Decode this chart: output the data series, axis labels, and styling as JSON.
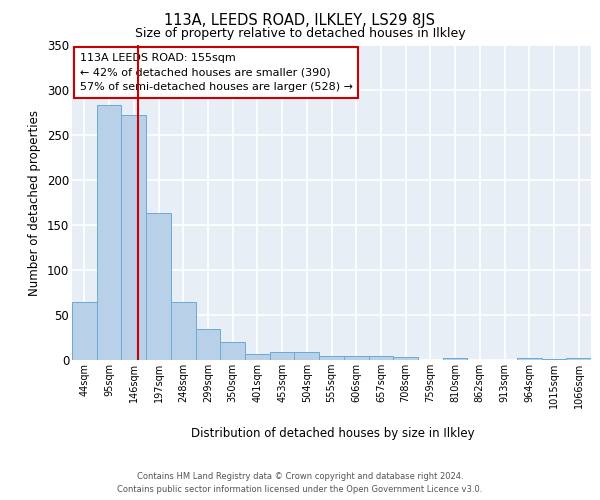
{
  "title_line1": "113A, LEEDS ROAD, ILKLEY, LS29 8JS",
  "title_line2": "Size of property relative to detached houses in Ilkley",
  "xlabel": "Distribution of detached houses by size in Ilkley",
  "ylabel": "Number of detached properties",
  "footer_line1": "Contains HM Land Registry data © Crown copyright and database right 2024.",
  "footer_line2": "Contains public sector information licensed under the Open Government Licence v3.0.",
  "bins": [
    "44sqm",
    "95sqm",
    "146sqm",
    "197sqm",
    "248sqm",
    "299sqm",
    "350sqm",
    "401sqm",
    "453sqm",
    "504sqm",
    "555sqm",
    "606sqm",
    "657sqm",
    "708sqm",
    "759sqm",
    "810sqm",
    "862sqm",
    "913sqm",
    "964sqm",
    "1015sqm",
    "1066sqm"
  ],
  "bar_values": [
    65,
    283,
    272,
    163,
    65,
    35,
    20,
    7,
    9,
    9,
    5,
    4,
    4,
    3,
    0,
    2,
    0,
    0,
    2,
    1,
    2
  ],
  "bar_color": "#b8d0e8",
  "bar_edge_color": "#6aaad4",
  "bg_color": "#e8eef6",
  "grid_color": "#ffffff",
  "annotation_line1": "113A LEEDS ROAD: 155sqm",
  "annotation_line2": "← 42% of detached houses are smaller (390)",
  "annotation_line3": "57% of semi-detached houses are larger (528) →",
  "annotation_box_color": "#ffffff",
  "annotation_box_edge": "#cc0000",
  "red_line_x": 2.18,
  "ylim": [
    0,
    350
  ],
  "yticks": [
    0,
    50,
    100,
    150,
    200,
    250,
    300,
    350
  ]
}
